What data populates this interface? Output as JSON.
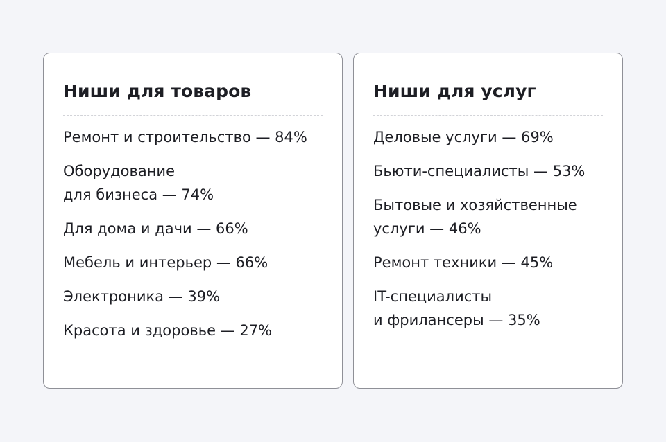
{
  "products": {
    "title": "Ниши для товаров",
    "items": [
      [
        "Ремонт и строительство — 84%"
      ],
      [
        "Оборудование",
        "для бизнеса — 74%"
      ],
      [
        "Для дома и дачи — 66%"
      ],
      [
        "Мебель и интерьер — 66%"
      ],
      [
        "Электроника — 39%"
      ],
      [
        "Красота и здоровье — 27%"
      ]
    ]
  },
  "services": {
    "title": "Ниши для услуг",
    "items": [
      [
        "Деловые услуги — 69%"
      ],
      [
        "Бьюти-специалисты — 53%"
      ],
      [
        "Бытовые и хозяйственные",
        "услуги — 46%"
      ],
      [
        "Ремонт техники — 45%"
      ],
      [
        "IT-специалисты",
        "и фрилансеры — 35%"
      ]
    ]
  }
}
